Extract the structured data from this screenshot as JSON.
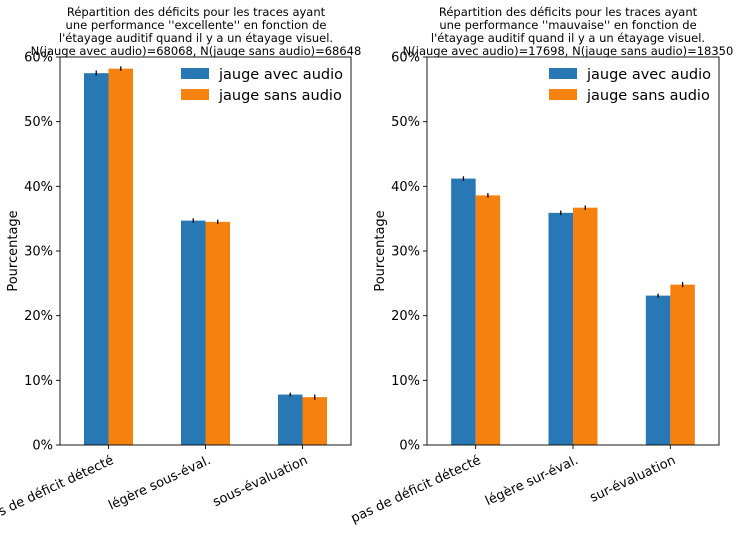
{
  "colors": {
    "avec": "#2878b5",
    "sans": "#f5820f"
  },
  "chart_data": [
    {
      "type": "bar",
      "title": [
        "Répartition des déficits pour les traces ayant",
        "une performance ''excellente'' en fonction de",
        "l'étayage auditif quand il y a un étayage visuel.",
        "N(jauge avec audio)=68068, N(jauge sans audio)=68648"
      ],
      "ylabel": "Pourcentage",
      "ylim": [
        0,
        60
      ],
      "yticks": [
        "0%",
        "10%",
        "20%",
        "30%",
        "40%",
        "50%",
        "60%"
      ],
      "categories": [
        "pas de déficit détecté",
        "légère sous-éval.",
        "sous-évaluation"
      ],
      "legend_position": "top-right",
      "series": [
        {
          "name": "jauge avec audio",
          "values": [
            57.5,
            34.7,
            7.8
          ],
          "errors": [
            0.4,
            0.35,
            0.3
          ]
        },
        {
          "name": "jauge sans audio",
          "values": [
            58.2,
            34.5,
            7.4
          ],
          "errors": [
            0.35,
            0.35,
            0.4
          ]
        }
      ]
    },
    {
      "type": "bar",
      "title": [
        "Répartition des déficits pour les traces ayant",
        "une performance ''mauvaise'' en fonction de",
        "l'étayage auditif quand il y a un étayage visuel.",
        "N(jauge avec audio)=17698, N(jauge sans audio)=18350"
      ],
      "ylabel": "Pourcentage",
      "ylim": [
        0,
        60
      ],
      "yticks": [
        "0%",
        "10%",
        "20%",
        "30%",
        "40%",
        "50%",
        "60%"
      ],
      "categories": [
        "pas de déficit détecté",
        "légère sur-éval.",
        "sur-évaluation"
      ],
      "legend_position": "top-right",
      "series": [
        {
          "name": "jauge avec audio",
          "values": [
            41.2,
            35.9,
            23.1
          ],
          "errors": [
            0.35,
            0.35,
            0.3
          ]
        },
        {
          "name": "jauge sans audio",
          "values": [
            38.6,
            36.7,
            24.8
          ],
          "errors": [
            0.35,
            0.35,
            0.4
          ]
        }
      ]
    }
  ]
}
